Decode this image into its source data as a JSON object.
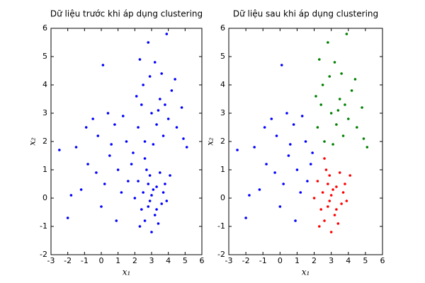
{
  "chart_data": [
    {
      "type": "scatter",
      "title": "Dữ liệu trước khi áp dụng clustering",
      "x_label": "x₁",
      "y_label": "x₂",
      "xlim": [
        -3,
        6
      ],
      "ylim": [
        -2,
        6
      ],
      "xticks": [
        -3,
        -2,
        -1,
        0,
        1,
        2,
        3,
        4,
        5,
        6
      ],
      "yticks": [
        -2,
        -1,
        0,
        1,
        2,
        3,
        4,
        5,
        6
      ],
      "series": [
        {
          "color": "#0000ff",
          "x": [
            3.0,
            2.8,
            3.3,
            2.5,
            3.6,
            2.9,
            3.2,
            2.4,
            3.8,
            2.7,
            3.4,
            2.2,
            3.1,
            2.6,
            3.9,
            2.9,
            3.5,
            2.3,
            3.7,
            2.8,
            3.3,
            4.1,
            2.0,
            3.0,
            2.6,
            0.5,
            -0.2,
            1.0,
            0.2,
            -0.8,
            1.5,
            0.8,
            -1.2,
            0.0,
            1.8,
            -0.5,
            1.2,
            0.4,
            -1.5,
            -2.5,
            -2.0,
            0.9,
            1.6,
            -0.3,
            0.1,
            -0.9,
            1.3,
            0.6,
            -1.8,
            1.9,
            3.0,
            2.5,
            3.5,
            2.2,
            4.0,
            3.2,
            2.8,
            4.2,
            3.7,
            2.4,
            3.3,
            4.5,
            2.9,
            3.9,
            5.1,
            4.8,
            2.1,
            3.1,
            3.6,
            2.6,
            4.4,
            3.4,
            2.3,
            3.8,
            4.9
          ],
          "values": [
            0.1,
            -0.3,
            0.4,
            0.2,
            -0.2,
            0.8,
            -0.6,
            -0.4,
            0.5,
            1.0,
            -0.9,
            0.6,
            0.3,
            -0.8,
            -0.1,
            -0.1,
            0.9,
            -1.0,
            0.2,
            0.5,
            -0.4,
            0.8,
            0.0,
            -1.2,
            1.4,
            1.5,
            2.2,
            1.0,
            0.5,
            1.2,
            2.0,
            2.6,
            0.3,
            -0.3,
            1.2,
            2.8,
            0.2,
            3.0,
            1.8,
            1.7,
            -0.7,
            -0.8,
            0.6,
            0.9,
            4.7,
            2.5,
            2.9,
            1.9,
            0.1,
            1.6,
            3.0,
            4.0,
            3.5,
            2.5,
            2.8,
            4.8,
            5.5,
            3.8,
            2.2,
            3.3,
            2.6,
            2.5,
            4.3,
            5.8,
            1.8,
            3.2,
            3.6,
            1.9,
            4.4,
            2.0,
            4.2,
            3.1,
            4.9,
            3.3,
            2.1
          ]
        }
      ]
    },
    {
      "type": "scatter",
      "title": "Dữ liệu sau khi áp dụng clustering",
      "x_label": "x₁",
      "y_label": "x₂",
      "xlim": [
        -3,
        6
      ],
      "ylim": [
        -2,
        6
      ],
      "xticks": [
        -3,
        -2,
        -1,
        0,
        1,
        2,
        3,
        4,
        5,
        6
      ],
      "yticks": [
        -2,
        -1,
        0,
        1,
        2,
        3,
        4,
        5,
        6
      ],
      "series": [
        {
          "color": "#ff0000",
          "x": [
            3.0,
            2.8,
            3.3,
            2.5,
            3.6,
            2.9,
            3.2,
            2.4,
            3.8,
            2.7,
            3.4,
            2.2,
            3.1,
            2.6,
            3.9,
            2.9,
            3.5,
            2.3,
            3.7,
            2.8,
            3.3,
            4.1,
            2.0,
            3.0,
            2.6
          ],
          "values": [
            0.1,
            -0.3,
            0.4,
            0.2,
            -0.2,
            0.8,
            -0.6,
            -0.4,
            0.5,
            1.0,
            -0.9,
            0.6,
            0.3,
            -0.8,
            -0.1,
            -0.1,
            0.9,
            -1.0,
            0.2,
            0.5,
            -0.4,
            0.8,
            0.0,
            -1.2,
            1.4
          ]
        },
        {
          "color": "#0000ff",
          "x": [
            0.5,
            -0.2,
            1.0,
            0.2,
            -0.8,
            1.5,
            0.8,
            -1.2,
            0.0,
            1.8,
            -0.5,
            1.2,
            0.4,
            -1.5,
            -2.5,
            -2.0,
            0.9,
            1.6,
            -0.3,
            0.1,
            -0.9,
            1.3,
            0.6,
            -1.8,
            1.9
          ],
          "values": [
            1.5,
            2.2,
            1.0,
            0.5,
            1.2,
            2.0,
            2.6,
            0.3,
            -0.3,
            1.2,
            2.8,
            0.2,
            3.0,
            1.8,
            1.7,
            -0.7,
            -0.8,
            0.6,
            0.9,
            4.7,
            2.5,
            2.9,
            1.9,
            0.1,
            1.6
          ]
        },
        {
          "color": "#008000",
          "x": [
            3.0,
            2.5,
            3.5,
            2.2,
            4.0,
            3.2,
            2.8,
            4.2,
            3.7,
            2.4,
            3.3,
            4.5,
            2.9,
            3.9,
            5.1,
            4.8,
            2.1,
            3.1,
            3.6,
            2.6,
            4.4,
            3.4,
            2.3,
            3.8,
            4.9
          ],
          "values": [
            3.0,
            4.0,
            3.5,
            2.5,
            2.8,
            4.8,
            5.5,
            3.8,
            2.2,
            3.3,
            2.6,
            2.5,
            4.3,
            5.8,
            1.8,
            3.2,
            3.6,
            1.9,
            4.4,
            2.0,
            4.2,
            3.1,
            4.9,
            3.3,
            2.1
          ]
        }
      ]
    }
  ]
}
